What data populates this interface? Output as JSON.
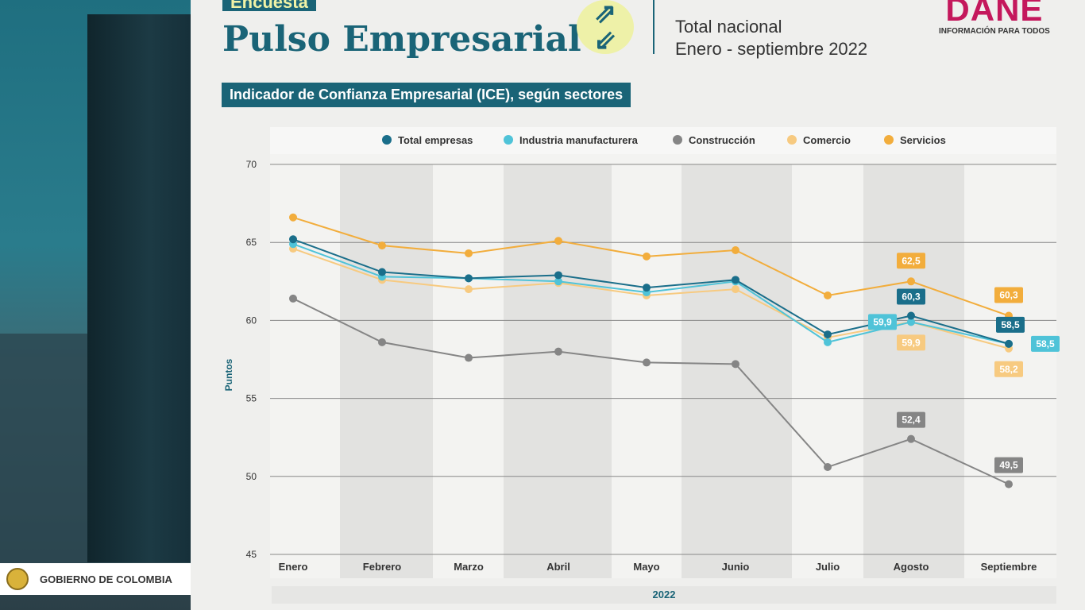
{
  "sidebar": {
    "footer": "GOBIERNO DE COLOMBIA"
  },
  "header": {
    "tag": "Encuesta",
    "title": "Pulso Empresarial",
    "scope": "Total nacional",
    "period": "Enero - septiembre 2022",
    "logo_text": "DANE",
    "logo_tagline": "INFORMACIÓN PARA TODOS"
  },
  "chart_title": "Indicador de Confianza Empresarial (ICE), según sectores",
  "chart_data": {
    "type": "line",
    "title": "Indicador de Confianza Empresarial (ICE), según sectores",
    "xlabel": "2022",
    "ylabel": "Puntos",
    "ylim": [
      45,
      70
    ],
    "yticks": [
      45,
      50,
      55,
      60,
      65,
      70
    ],
    "grid": true,
    "legend": "top",
    "categories": [
      "Enero",
      "Febrero",
      "Marzo",
      "Abril",
      "Mayo",
      "Junio",
      "Julio",
      "Agosto",
      "Septiembre"
    ],
    "series": [
      {
        "name": "Total empresas",
        "color": "#1a6e8a",
        "values": [
          65.2,
          63.1,
          62.7,
          62.9,
          62.1,
          62.6,
          59.1,
          60.3,
          58.5
        ],
        "labels": {
          "7": "60,3",
          "8": "58,5"
        }
      },
      {
        "name": "Industria manufacturera",
        "color": "#4fc3d8",
        "values": [
          64.9,
          62.8,
          62.7,
          62.5,
          61.8,
          62.5,
          58.6,
          59.9,
          58.5
        ],
        "labels": {
          "7": "59,9",
          "8": "58,5"
        }
      },
      {
        "name": "Construcción",
        "color": "#858585",
        "values": [
          61.4,
          58.6,
          57.6,
          58.0,
          57.3,
          57.2,
          50.6,
          52.4,
          49.5
        ],
        "labels": {
          "7": "52,4",
          "8": "49,5"
        }
      },
      {
        "name": "Comercio",
        "color": "#f7ca80",
        "values": [
          64.6,
          62.6,
          62.0,
          62.4,
          61.6,
          62.0,
          58.9,
          59.9,
          58.2
        ],
        "labels": {
          "7": "59,9",
          "8": "58,2"
        }
      },
      {
        "name": "Servicios",
        "color": "#f2ad3c",
        "values": [
          66.6,
          64.8,
          64.3,
          65.1,
          64.1,
          64.5,
          61.6,
          62.5,
          60.3
        ],
        "labels": {
          "7": "62,5",
          "8": "60,3"
        }
      }
    ]
  }
}
